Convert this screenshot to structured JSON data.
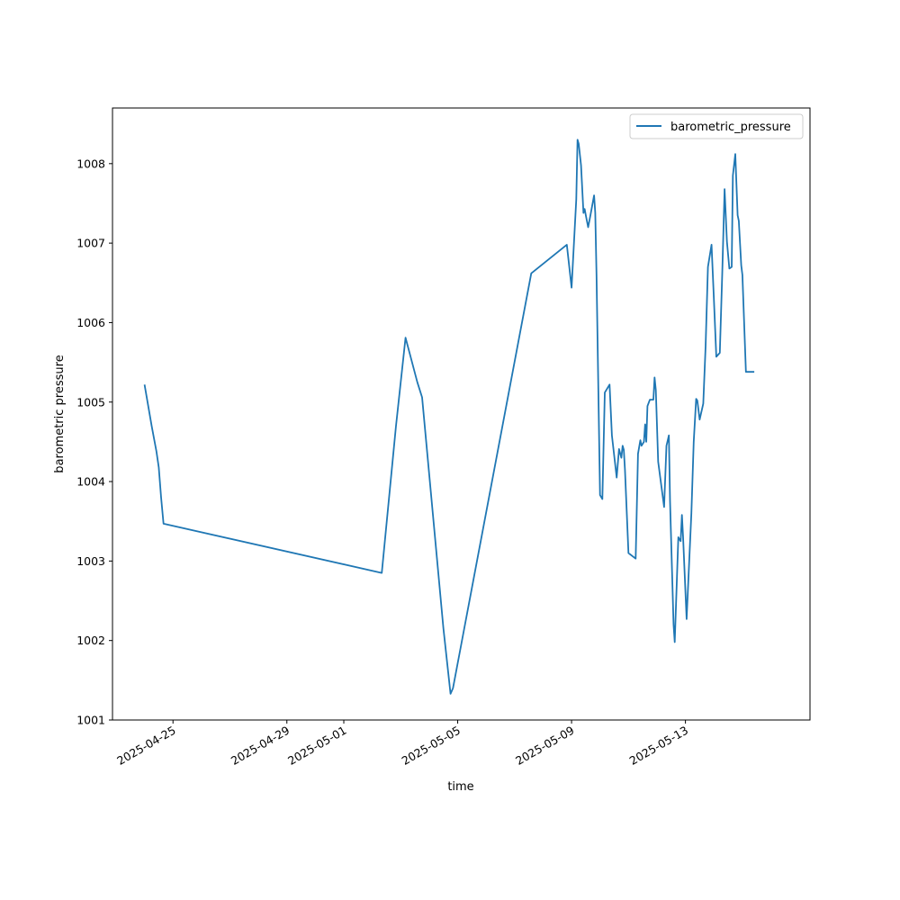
{
  "chart_data": {
    "type": "line",
    "title": "",
    "xlabel": "time",
    "ylabel": "barometric pressure",
    "xlim": [
      "2025-04-22T21:00",
      "2025-05-17T09:00"
    ],
    "ylim": [
      1001,
      1008.7
    ],
    "y_ticks": [
      1001,
      1002,
      1003,
      1004,
      1005,
      1006,
      1007,
      1008
    ],
    "x_ticks": [
      "2025-04-25",
      "2025-04-29",
      "2025-05-01",
      "2025-05-05",
      "2025-05-09",
      "2025-05-13"
    ],
    "grid": false,
    "legend": {
      "position": "top-right"
    },
    "series": [
      {
        "name": "barometric_pressure",
        "color": "#1f77b4",
        "x": [
          "2025-04-24T00:00",
          "2025-04-24T06:00",
          "2025-04-24T10:00",
          "2025-04-24T12:00",
          "2025-04-24T14:00",
          "2025-04-24T16:00",
          "2025-05-02T08:00",
          "2025-05-02T20:00",
          "2025-05-03T04:00",
          "2025-05-03T14:00",
          "2025-05-03T18:00",
          "2025-05-04T12:00",
          "2025-05-04T18:00",
          "2025-05-04T20:00",
          "2025-05-07T14:00",
          "2025-05-08T20:00",
          "2025-05-09T00:00",
          "2025-05-09T04:00",
          "2025-05-09T05:00",
          "2025-05-09T06:00",
          "2025-05-09T08:00",
          "2025-05-09T10:00",
          "2025-05-09T11:00",
          "2025-05-09T12:00",
          "2025-05-09T14:00",
          "2025-05-09T16:00",
          "2025-05-09T19:00",
          "2025-05-09T20:00",
          "2025-05-09T21:00",
          "2025-05-10T00:00",
          "2025-05-10T02:00",
          "2025-05-10T04:00",
          "2025-05-10T08:00",
          "2025-05-10T10:00",
          "2025-05-10T14:00",
          "2025-05-10T16:00",
          "2025-05-10T18:00",
          "2025-05-10T19:00",
          "2025-05-10T20:00",
          "2025-05-10T21:00",
          "2025-05-11T00:00",
          "2025-05-11T06:00",
          "2025-05-11T08:00",
          "2025-05-11T10:00",
          "2025-05-11T11:00",
          "2025-05-11T13:00",
          "2025-05-11T14:00",
          "2025-05-11T15:00",
          "2025-05-11T16:00",
          "2025-05-11T18:00",
          "2025-05-11T21:00",
          "2025-05-11T22:00",
          "2025-05-11T23:00",
          "2025-05-12T01:00",
          "2025-05-12T06:00",
          "2025-05-12T08:00",
          "2025-05-12T10:00",
          "2025-05-12T11:00",
          "2025-05-12T14:00",
          "2025-05-12T15:00",
          "2025-05-12T18:00",
          "2025-05-12T20:00",
          "2025-05-12T21:00",
          "2025-05-12T22:00",
          "2025-05-13T01:00",
          "2025-05-13T05:00",
          "2025-05-13T07:00",
          "2025-05-13T09:00",
          "2025-05-13T10:00",
          "2025-05-13T12:00",
          "2025-05-13T15:00",
          "2025-05-13T17:00",
          "2025-05-13T19:00",
          "2025-05-13T22:00",
          "2025-05-14T00:00",
          "2025-05-14T02:00",
          "2025-05-14T05:00",
          "2025-05-14T07:00",
          "2025-05-14T09:00",
          "2025-05-14T11:00",
          "2025-05-14T13:00",
          "2025-05-14T15:00",
          "2025-05-14T16:00",
          "2025-05-14T18:00",
          "2025-05-14T20:00",
          "2025-05-14T21:00",
          "2025-05-14T23:00",
          "2025-05-15T00:00",
          "2025-05-15T03:00",
          "2025-05-15T04:00",
          "2025-05-15T06:00",
          "2025-05-15T10:00"
        ],
        "values": [
          1005.22,
          1004.7,
          1004.38,
          1004.18,
          1003.8,
          1003.47,
          1002.85,
          1004.7,
          1005.81,
          1005.25,
          1005.06,
          1002.15,
          1001.33,
          1001.4,
          1006.62,
          1006.98,
          1006.44,
          1007.55,
          1008.3,
          1008.25,
          1007.98,
          1007.38,
          1007.43,
          1007.35,
          1007.2,
          1007.36,
          1007.6,
          1007.38,
          1006.6,
          1003.83,
          1003.78,
          1005.12,
          1005.22,
          1004.58,
          1004.05,
          1004.41,
          1004.3,
          1004.45,
          1004.4,
          1004.15,
          1003.1,
          1003.03,
          1004.35,
          1004.52,
          1004.45,
          1004.5,
          1004.72,
          1004.5,
          1004.95,
          1005.03,
          1005.03,
          1005.31,
          1005.15,
          1004.25,
          1003.68,
          1004.45,
          1004.58,
          1003.75,
          1002.2,
          1001.98,
          1003.3,
          1003.25,
          1003.58,
          1003.3,
          1002.27,
          1003.6,
          1004.5,
          1005.04,
          1005.02,
          1004.78,
          1004.98,
          1005.7,
          1006.7,
          1006.98,
          1006.3,
          1005.57,
          1005.62,
          1006.62,
          1007.68,
          1007.02,
          1006.68,
          1006.7,
          1007.85,
          1008.12,
          1007.35,
          1007.28,
          1006.72,
          1006.6,
          1005.38,
          1005.38,
          1005.38,
          1005.38
        ]
      }
    ]
  }
}
